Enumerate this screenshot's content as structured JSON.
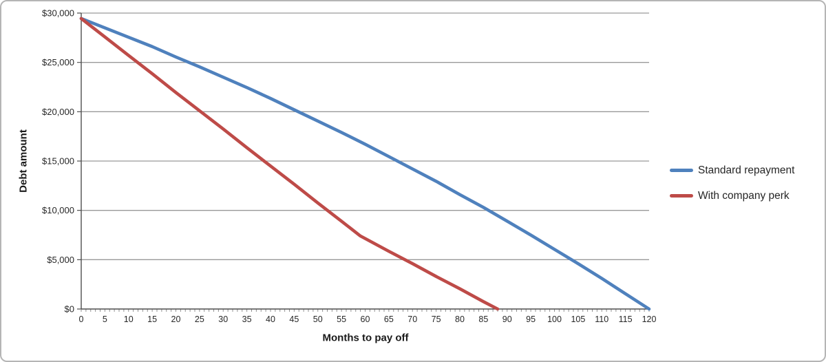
{
  "chart_data": {
    "type": "line",
    "title": "",
    "xlabel": "Months to pay off",
    "ylabel": "Debt amount",
    "grid": "horizontal",
    "legend_position": "right",
    "x_axis": {
      "min": 0,
      "max": 120,
      "major_tick_step": 5,
      "minor_tick_step": 1,
      "tick_labels": [
        "0",
        "5",
        "10",
        "15",
        "20",
        "25",
        "30",
        "35",
        "40",
        "45",
        "50",
        "55",
        "60",
        "65",
        "70",
        "75",
        "80",
        "85",
        "90",
        "95",
        "100",
        "105",
        "110",
        "115",
        "120"
      ]
    },
    "y_axis": {
      "min": 0,
      "max": 30000,
      "tick_step": 5000,
      "tick_labels": [
        "$0",
        "$5,000",
        "$10,000",
        "$15,000",
        "$20,000",
        "$25,000",
        "$30,000"
      ]
    },
    "series": [
      {
        "name": "Standard repayment",
        "color": "#4F81BD",
        "points": [
          [
            0,
            29450
          ],
          [
            5,
            28500
          ],
          [
            10,
            27550
          ],
          [
            15,
            26600
          ],
          [
            20,
            25550
          ],
          [
            25,
            24550
          ],
          [
            30,
            23500
          ],
          [
            35,
            22450
          ],
          [
            40,
            21350
          ],
          [
            45,
            20200
          ],
          [
            50,
            19050
          ],
          [
            55,
            17900
          ],
          [
            60,
            16700
          ],
          [
            65,
            15450
          ],
          [
            70,
            14200
          ],
          [
            75,
            12950
          ],
          [
            80,
            11600
          ],
          [
            85,
            10300
          ],
          [
            90,
            8900
          ],
          [
            95,
            7500
          ],
          [
            100,
            6050
          ],
          [
            105,
            4600
          ],
          [
            110,
            3100
          ],
          [
            115,
            1550
          ],
          [
            120,
            0
          ]
        ]
      },
      {
        "name": "With company perk",
        "color": "#BE4B48",
        "points": [
          [
            0,
            29450
          ],
          [
            5,
            27580
          ],
          [
            10,
            25700
          ],
          [
            15,
            23850
          ],
          [
            20,
            21950
          ],
          [
            25,
            20100
          ],
          [
            30,
            18250
          ],
          [
            35,
            16350
          ],
          [
            40,
            14500
          ],
          [
            45,
            12650
          ],
          [
            50,
            10750
          ],
          [
            55,
            8900
          ],
          [
            59,
            7400
          ],
          [
            65,
            5850
          ],
          [
            70,
            4600
          ],
          [
            75,
            3300
          ],
          [
            80,
            2050
          ],
          [
            85,
            750
          ],
          [
            88,
            0
          ]
        ]
      }
    ]
  },
  "colors": {
    "gridline": "#999999",
    "axis_line": "#4d4d4d",
    "tick": "#8f8f8f",
    "text": "#262626",
    "frame_border": "#b5b5b5",
    "background": "#ffffff"
  }
}
